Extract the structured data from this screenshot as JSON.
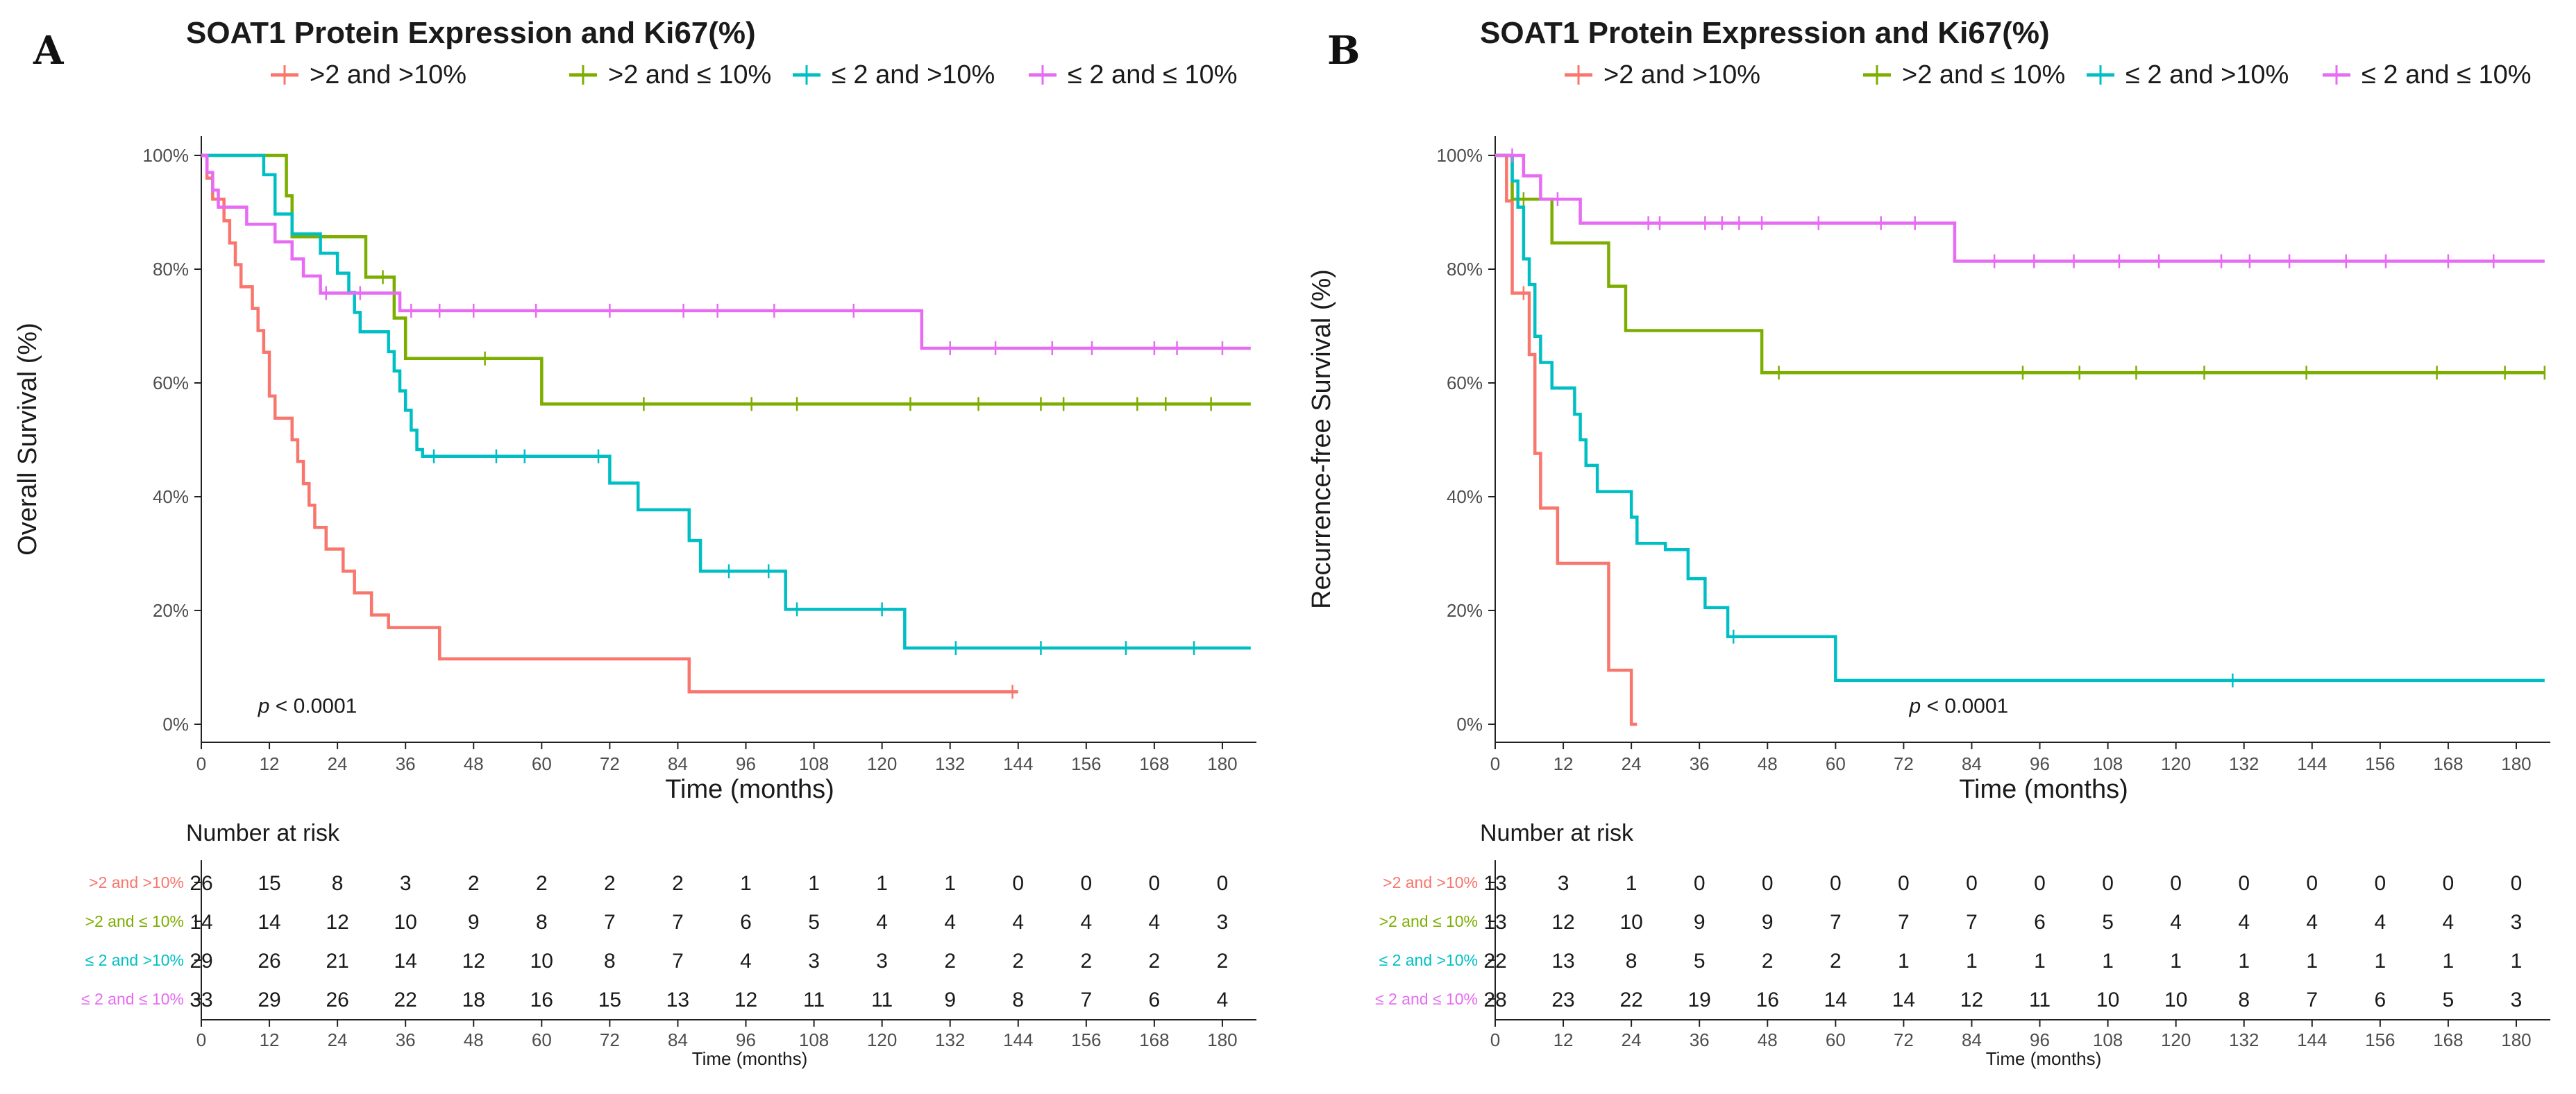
{
  "chart_data": [
    {
      "type": "line",
      "panel_letter": "A",
      "title": "SOAT1 Protein Expression and Ki67(%)",
      "xlabel": "Time (months)",
      "ylabel": "Overall Survival (%)",
      "xlim": [
        0,
        186
      ],
      "ylim": [
        0,
        100
      ],
      "x_ticks": [
        0,
        12,
        24,
        36,
        48,
        60,
        72,
        84,
        96,
        108,
        120,
        132,
        144,
        156,
        168,
        180
      ],
      "y_ticks": [
        0,
        20,
        40,
        60,
        80,
        100
      ],
      "y_tick_labels": [
        "0%",
        "20%",
        "40%",
        "60%",
        "80%",
        "100%"
      ],
      "annotation": {
        "p": "p",
        "text": " < 0.0001",
        "x": 10,
        "y": 2
      },
      "series": [
        {
          "name": ">2 and >10%",
          "color": "#F8766D",
          "steps": [
            [
              0,
              100
            ],
            [
              1,
              96
            ],
            [
              2,
              92.3
            ],
            [
              4,
              88.5
            ],
            [
              5,
              84.6
            ],
            [
              6,
              80.8
            ],
            [
              7,
              76.9
            ],
            [
              9,
              73.1
            ],
            [
              10,
              69.2
            ],
            [
              11,
              65.4
            ],
            [
              12,
              57.7
            ],
            [
              13,
              53.8
            ],
            [
              16,
              50
            ],
            [
              17,
              46.2
            ],
            [
              18,
              42.3
            ],
            [
              19,
              38.5
            ],
            [
              20,
              34.6
            ],
            [
              22,
              30.8
            ],
            [
              25,
              26.9
            ],
            [
              27,
              23.1
            ],
            [
              30,
              19.2
            ],
            [
              33,
              17
            ],
            [
              42,
              11.5
            ],
            [
              86,
              5.7
            ],
            [
              144,
              5.7
            ]
          ],
          "censors": [
            143
          ]
        },
        {
          "name": ">2 and ≤ 10%",
          "color": "#7CAE00",
          "steps": [
            [
              0,
              100
            ],
            [
              15,
              92.9
            ],
            [
              16,
              85.7
            ],
            [
              29,
              78.6
            ],
            [
              34,
              71.4
            ],
            [
              36,
              64.3
            ],
            [
              60,
              56.3
            ],
            [
              185,
              56.3
            ]
          ],
          "censors": [
            32,
            50,
            78,
            97,
            105,
            125,
            137,
            148,
            152,
            165,
            170,
            178
          ]
        },
        {
          "name": "≤ 2 and >10%",
          "color": "#00BFC4",
          "steps": [
            [
              0,
              100
            ],
            [
              11,
              96.6
            ],
            [
              13,
              89.7
            ],
            [
              16,
              86.2
            ],
            [
              21,
              82.8
            ],
            [
              24,
              79.3
            ],
            [
              26,
              75.9
            ],
            [
              27,
              72.4
            ],
            [
              28,
              69
            ],
            [
              33,
              65.5
            ],
            [
              34,
              62.1
            ],
            [
              35,
              58.6
            ],
            [
              36,
              55.2
            ],
            [
              37,
              51.7
            ],
            [
              38,
              48.3
            ],
            [
              39,
              47.1
            ],
            [
              60,
              47.1
            ],
            [
              72,
              42.4
            ],
            [
              77,
              37.7
            ],
            [
              86,
              32.3
            ],
            [
              88,
              26.9
            ],
            [
              103,
              20.2
            ],
            [
              124,
              13.4
            ],
            [
              185,
              13.4
            ]
          ],
          "censors": [
            41,
            52,
            57,
            70,
            93,
            100,
            105,
            120,
            133,
            148,
            163,
            175
          ]
        },
        {
          "name": "≤ 2 and ≤ 10%",
          "color": "#E76BF3",
          "steps": [
            [
              0,
              100
            ],
            [
              1,
              97
            ],
            [
              2,
              93.9
            ],
            [
              3,
              90.9
            ],
            [
              8,
              87.9
            ],
            [
              13,
              84.8
            ],
            [
              16,
              81.8
            ],
            [
              18,
              78.8
            ],
            [
              21,
              75.8
            ],
            [
              35,
              72.7
            ],
            [
              127,
              66.1
            ],
            [
              185,
              66.1
            ]
          ],
          "censors": [
            22,
            28,
            37,
            42,
            48,
            59,
            72,
            85,
            91,
            101,
            115,
            132,
            140,
            150,
            157,
            168,
            172,
            180
          ]
        }
      ],
      "risk_table": {
        "title": "Number at risk",
        "xlabel": "Time (months)",
        "rows": [
          {
            "label": ">2 and >10%",
            "values": [
              "26",
              "15",
              "8",
              "3",
              "2",
              "2",
              "2",
              "2",
              "1",
              "1",
              "1",
              "1",
              "0",
              "0",
              "0",
              "0"
            ]
          },
          {
            "label": ">2 and ≤ 10%",
            "values": [
              "14",
              "14",
              "12",
              "10",
              "9",
              "8",
              "7",
              "7",
              "6",
              "5",
              "4",
              "4",
              "4",
              "4",
              "4",
              "3"
            ]
          },
          {
            "label": "≤ 2 and >10%",
            "values": [
              "29",
              "26",
              "21",
              "14",
              "12",
              "10",
              "8",
              "7",
              "4",
              "3",
              "3",
              "2",
              "2",
              "2",
              "2",
              "2"
            ]
          },
          {
            "label": "≤ 2 and ≤ 10%",
            "values": [
              "33",
              "29",
              "26",
              "22",
              "18",
              "16",
              "15",
              "13",
              "12",
              "11",
              "11",
              "9",
              "8",
              "7",
              "6",
              "4"
            ]
          }
        ]
      }
    },
    {
      "type": "line",
      "panel_letter": "B",
      "title": "SOAT1 Protein Expression and Ki67(%)",
      "xlabel": "Time (months)",
      "ylabel": "Recurrence-free Survival (%)",
      "xlim": [
        0,
        186
      ],
      "ylim": [
        0,
        100
      ],
      "x_ticks": [
        0,
        12,
        24,
        36,
        48,
        60,
        72,
        84,
        96,
        108,
        120,
        132,
        144,
        156,
        168,
        180
      ],
      "y_ticks": [
        0,
        20,
        40,
        60,
        80,
        100
      ],
      "y_tick_labels": [
        "0%",
        "20%",
        "40%",
        "60%",
        "80%",
        "100%"
      ],
      "annotation": {
        "p": "p",
        "text": " < 0.0001",
        "x": 73,
        "y": 2
      },
      "series": [
        {
          "name": ">2 and >10%",
          "color": "#F8766D",
          "steps": [
            [
              0,
              100
            ],
            [
              2,
              92
            ],
            [
              3,
              75.8
            ],
            [
              6,
              65
            ],
            [
              7,
              47.6
            ],
            [
              8,
              38
            ],
            [
              11,
              28.3
            ],
            [
              20,
              9.5
            ],
            [
              24,
              0
            ],
            [
              25,
              0
            ]
          ],
          "censors": [
            5
          ]
        },
        {
          "name": ">2 and ≤ 10%",
          "color": "#7CAE00",
          "steps": [
            [
              0,
              100
            ],
            [
              3,
              92.3
            ],
            [
              10,
              84.6
            ],
            [
              20,
              77
            ],
            [
              23,
              69.2
            ],
            [
              47,
              61.8
            ],
            [
              185,
              61.8
            ]
          ],
          "censors": [
            5,
            50,
            93,
            103,
            113,
            125,
            143,
            166,
            178,
            185
          ]
        },
        {
          "name": "≤ 2 and >10%",
          "color": "#00BFC4",
          "steps": [
            [
              0,
              100
            ],
            [
              3,
              95.5
            ],
            [
              4,
              90.9
            ],
            [
              5,
              81.8
            ],
            [
              6,
              77.3
            ],
            [
              7,
              68.2
            ],
            [
              8,
              63.6
            ],
            [
              10,
              59.1
            ],
            [
              14,
              54.5
            ],
            [
              15,
              50
            ],
            [
              16,
              45.5
            ],
            [
              18,
              40.9
            ],
            [
              24,
              36.4
            ],
            [
              25,
              31.8
            ],
            [
              30,
              30.7
            ],
            [
              34,
              25.6
            ],
            [
              37,
              20.5
            ],
            [
              41,
              15.4
            ],
            [
              60,
              7.7
            ],
            [
              185,
              7.7
            ]
          ],
          "censors": [
            42,
            130
          ]
        },
        {
          "name": "≤ 2 and ≤ 10%",
          "color": "#E76BF3",
          "steps": [
            [
              0,
              100
            ],
            [
              5,
              96.4
            ],
            [
              8,
              92.3
            ],
            [
              15,
              88.1
            ],
            [
              81,
              81.4
            ],
            [
              185,
              81.4
            ]
          ],
          "censors": [
            3,
            11,
            27,
            29,
            37,
            40,
            43,
            47,
            57,
            68,
            74,
            88,
            95,
            102,
            110,
            117,
            128,
            133,
            140,
            150,
            157,
            168,
            176
          ]
        }
      ],
      "risk_table": {
        "title": "Number at risk",
        "xlabel": "Time (months)",
        "rows": [
          {
            "label": ">2 and >10%",
            "values": [
              "13",
              "3",
              "1",
              "0",
              "0",
              "0",
              "0",
              "0",
              "0",
              "0",
              "0",
              "0",
              "0",
              "0",
              "0",
              "0"
            ]
          },
          {
            "label": ">2 and ≤ 10%",
            "values": [
              "13",
              "12",
              "10",
              "9",
              "9",
              "7",
              "7",
              "7",
              "6",
              "5",
              "4",
              "4",
              "4",
              "4",
              "4",
              "3"
            ]
          },
          {
            "label": "≤ 2 and >10%",
            "values": [
              "22",
              "13",
              "8",
              "5",
              "2",
              "2",
              "1",
              "1",
              "1",
              "1",
              "1",
              "1",
              "1",
              "1",
              "1",
              "1"
            ]
          },
          {
            "label": "≤ 2 and ≤ 10%",
            "values": [
              "28",
              "23",
              "22",
              "19",
              "16",
              "14",
              "14",
              "12",
              "11",
              "10",
              "10",
              "8",
              "7",
              "6",
              "5",
              "3"
            ]
          }
        ]
      }
    }
  ]
}
